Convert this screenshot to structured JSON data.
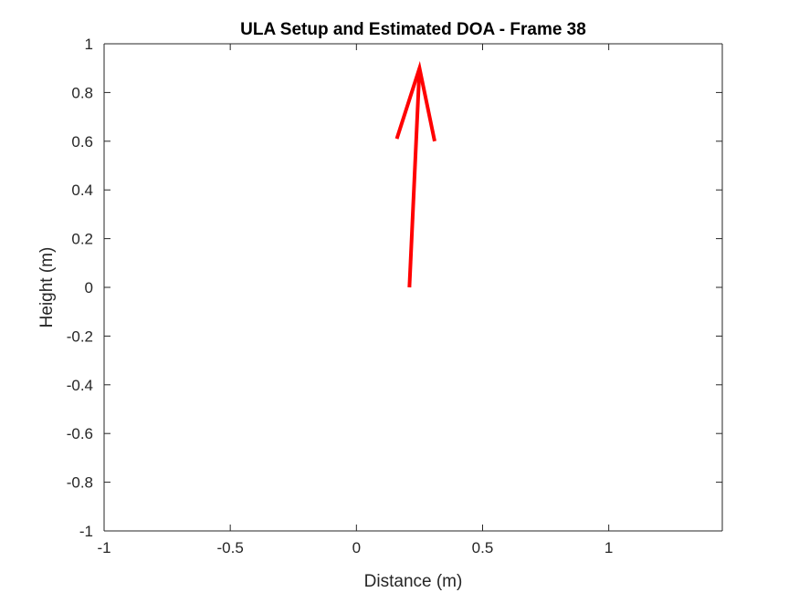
{
  "chart_data": {
    "type": "line",
    "title": "ULA Setup and Estimated DOA - Frame 38",
    "xlabel": "Distance (m)",
    "ylabel": "Height (m)",
    "xlim": [
      -1,
      1.45
    ],
    "ylim": [
      -1,
      1
    ],
    "xticks": [
      -1,
      -0.5,
      0,
      0.5,
      1
    ],
    "yticks": [
      -1,
      -0.8,
      -0.6,
      -0.4,
      -0.2,
      0,
      0.2,
      0.4,
      0.6,
      0.8,
      1
    ],
    "xtick_labels": [
      "-1",
      "-0.5",
      "0",
      "0.5",
      "1"
    ],
    "ytick_labels": [
      "-1",
      "-0.8",
      "-0.6",
      "-0.4",
      "-0.2",
      "0",
      "0.2",
      "0.4",
      "0.6",
      "0.8",
      "1"
    ],
    "grid": false,
    "box": true,
    "series": [
      {
        "color": "#ff0000",
        "style": "arrow",
        "x": [
          0.21,
          0.25
        ],
        "y": [
          0.0,
          0.9
        ]
      },
      {
        "color": "#ff0000",
        "style": "arrowhead",
        "x": [
          0.16,
          0.25,
          0.31
        ],
        "y": [
          0.61,
          0.9,
          0.6
        ]
      }
    ]
  }
}
